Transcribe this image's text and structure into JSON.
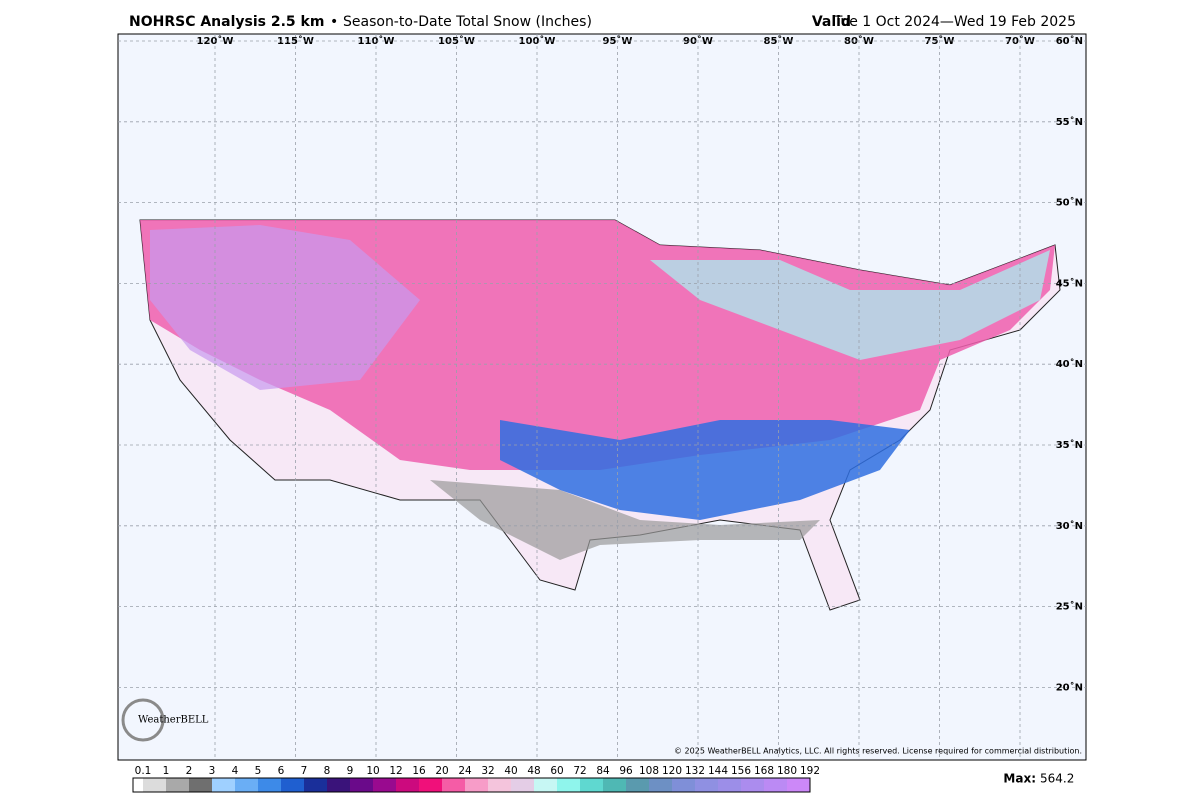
{
  "header": {
    "title": "NOHRSC Analysis 2.5 km",
    "separator": "•",
    "subtitle": "Season-to-Date Total Snow (Inches)",
    "valid_label": "Valid",
    "valid_range": "Tue 1 Oct 2024—Wed 19 Feb 2025"
  },
  "map": {
    "longitude_labels": [
      "120˚W",
      "115˚W",
      "110˚W",
      "105˚W",
      "100˚W",
      "95˚W",
      "90˚W",
      "85˚W",
      "80˚W",
      "75˚W",
      "70˚W"
    ],
    "latitude_labels": [
      "60˚N",
      "55˚N",
      "50˚N",
      "45˚N",
      "40˚N",
      "35˚N",
      "30˚N",
      "25˚N",
      "20˚N"
    ],
    "logo": "WeatherBELL",
    "copyright": "© 2025 WeatherBELL Analytics, LLC. All rights reserved. License required for commercial distribution."
  },
  "colorbar": {
    "levels": [
      0.1,
      1,
      2,
      3,
      4,
      5,
      6,
      7,
      8,
      9,
      10,
      12,
      16,
      20,
      24,
      32,
      40,
      48,
      60,
      72,
      84,
      96,
      108,
      120,
      132,
      144,
      156,
      168,
      180,
      192
    ],
    "colors": [
      "#ffffff",
      "#dcdcdc",
      "#a9a9a9",
      "#6f6f6f",
      "#9fd0ff",
      "#6aaef5",
      "#3d8ae8",
      "#1f5fd0",
      "#1a2f9a",
      "#3a137a",
      "#6a0a8a",
      "#990a8f",
      "#cc0a7e",
      "#f0107a",
      "#f55ca6",
      "#f79cc8",
      "#f4c4dc",
      "#e4cde6",
      "#c7f7f4",
      "#8ff5ec",
      "#5fd8d0",
      "#4fb8b4",
      "#5a9aae",
      "#6d90c4",
      "#7f8fd8",
      "#8f90e2",
      "#9c8ee8",
      "#ab8cee",
      "#bb8af4",
      "#cc88f8"
    ],
    "max_label": "Max:",
    "max_value": 564.2
  }
}
